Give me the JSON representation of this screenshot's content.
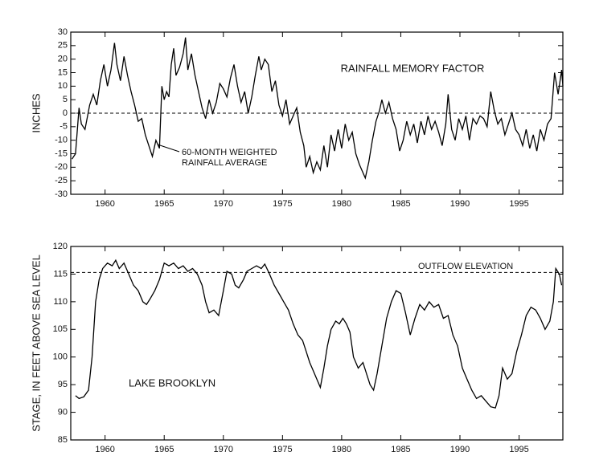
{
  "chart_data": [
    {
      "type": "line",
      "ylabel": "INCHES",
      "title": "RAINFALL MEMORY FACTOR",
      "annotation": [
        "60-MONTH WEIGHTED",
        "RAINFALL AVERAGE"
      ],
      "color": "#000000",
      "reference_line": 0,
      "xlim": [
        1957.1,
        1998.7
      ],
      "xticks": [
        1960,
        1965,
        1970,
        1975,
        1980,
        1985,
        1990,
        1995
      ],
      "ylim": [
        -30,
        30
      ],
      "yticks": [
        -30,
        -25,
        -20,
        -15,
        -10,
        -5,
        0,
        5,
        10,
        15,
        20,
        25,
        30
      ],
      "x": [
        1957.2,
        1957.5,
        1957.8,
        1958.0,
        1958.3,
        1958.7,
        1959.0,
        1959.3,
        1959.6,
        1959.9,
        1960.2,
        1960.5,
        1960.8,
        1961.0,
        1961.3,
        1961.6,
        1961.9,
        1962.2,
        1962.5,
        1962.8,
        1963.1,
        1963.4,
        1963.7,
        1964.0,
        1964.3,
        1964.6,
        1964.8,
        1965.0,
        1965.2,
        1965.4,
        1965.6,
        1965.8,
        1966.0,
        1966.3,
        1966.6,
        1966.8,
        1967.0,
        1967.3,
        1967.6,
        1967.9,
        1968.2,
        1968.5,
        1968.8,
        1969.1,
        1969.4,
        1969.7,
        1970.0,
        1970.3,
        1970.6,
        1970.9,
        1971.2,
        1971.5,
        1971.8,
        1972.1,
        1972.4,
        1972.7,
        1973.0,
        1973.2,
        1973.5,
        1973.8,
        1974.1,
        1974.4,
        1974.7,
        1975.0,
        1975.3,
        1975.6,
        1975.9,
        1976.2,
        1976.5,
        1976.8,
        1977.0,
        1977.3,
        1977.6,
        1977.9,
        1978.2,
        1978.5,
        1978.8,
        1979.1,
        1979.4,
        1979.7,
        1980.0,
        1980.3,
        1980.6,
        1980.9,
        1981.2,
        1981.5,
        1981.8,
        1982.0,
        1982.3,
        1982.6,
        1982.9,
        1983.2,
        1983.4,
        1983.7,
        1984.0,
        1984.3,
        1984.6,
        1984.9,
        1985.2,
        1985.5,
        1985.8,
        1986.1,
        1986.4,
        1986.7,
        1987.0,
        1987.3,
        1987.6,
        1987.9,
        1988.2,
        1988.5,
        1988.8,
        1989.0,
        1989.3,
        1989.6,
        1989.9,
        1990.2,
        1990.5,
        1990.8,
        1991.1,
        1991.4,
        1991.7,
        1992.0,
        1992.3,
        1992.6,
        1992.9,
        1993.2,
        1993.5,
        1993.8,
        1994.1,
        1994.4,
        1994.7,
        1995.0,
        1995.3,
        1995.6,
        1995.9,
        1996.2,
        1996.5,
        1996.8,
        1997.1,
        1997.4,
        1997.7,
        1998.0,
        1998.3,
        1998.6,
        1998.7
      ],
      "values": [
        -17,
        -15,
        2,
        -4,
        -6,
        3,
        7,
        3,
        12,
        18,
        10,
        16,
        26,
        18,
        12,
        21,
        14,
        8,
        3,
        -3,
        -2,
        -8,
        -12,
        -16,
        -10,
        -13,
        10,
        5,
        8,
        6,
        18,
        24,
        14,
        17,
        22,
        28,
        16,
        22,
        14,
        8,
        2,
        -2,
        5,
        0,
        4,
        11,
        9,
        6,
        13,
        18,
        10,
        4,
        8,
        0,
        6,
        14,
        21,
        16,
        20,
        18,
        8,
        12,
        3,
        -1,
        5,
        -4,
        -1,
        2,
        -7,
        -12,
        -20,
        -16,
        -22,
        -18,
        -21,
        -12,
        -20,
        -8,
        -14,
        -6,
        -13,
        -4,
        -10,
        -7,
        -15,
        -19,
        -22,
        -24,
        -18,
        -10,
        -3,
        1,
        5,
        0,
        4,
        -2,
        -6,
        -14,
        -10,
        -3,
        -8,
        -4,
        -11,
        -3,
        -8,
        -1,
        -6,
        -3,
        -7,
        -12,
        -4,
        7,
        -6,
        -10,
        -2,
        -6,
        -1,
        -10,
        -2,
        -4,
        -1,
        -2,
        -5,
        8,
        1,
        -4,
        -2,
        -8,
        -4,
        0,
        -6,
        -8,
        -12,
        -6,
        -13,
        -8,
        -14,
        -6,
        -10,
        -4,
        -2,
        15,
        7,
        16,
        10
      ]
    },
    {
      "type": "line",
      "ylabel": "STAGE, IN FEET ABOVE SEA LEVEL",
      "title": "LAKE BROOKLYN",
      "reference_line": 115.3,
      "reference_label": "OUTFLOW ELEVATION",
      "color": "#000000",
      "xlim": [
        1957.1,
        1998.7
      ],
      "xticks": [
        1960,
        1965,
        1970,
        1975,
        1980,
        1985,
        1990,
        1995
      ],
      "ylim": [
        85,
        120
      ],
      "yticks": [
        85,
        90,
        95,
        100,
        105,
        110,
        115,
        120
      ],
      "x": [
        1957.5,
        1957.8,
        1958.2,
        1958.6,
        1958.9,
        1959.2,
        1959.5,
        1959.8,
        1960.2,
        1960.6,
        1960.9,
        1961.2,
        1961.6,
        1962.0,
        1962.4,
        1962.8,
        1963.2,
        1963.5,
        1963.8,
        1964.2,
        1964.6,
        1965.0,
        1965.4,
        1965.8,
        1966.2,
        1966.6,
        1967.0,
        1967.4,
        1967.8,
        1968.2,
        1968.5,
        1968.8,
        1969.2,
        1969.6,
        1970.0,
        1970.3,
        1970.7,
        1971.0,
        1971.3,
        1971.7,
        1972.0,
        1972.4,
        1972.8,
        1973.2,
        1973.5,
        1973.9,
        1974.3,
        1974.7,
        1975.1,
        1975.5,
        1975.9,
        1976.3,
        1976.7,
        1977.0,
        1977.3,
        1977.6,
        1977.9,
        1978.2,
        1978.5,
        1978.8,
        1979.1,
        1979.5,
        1979.8,
        1980.1,
        1980.4,
        1980.7,
        1981.0,
        1981.4,
        1981.8,
        1982.1,
        1982.4,
        1982.7,
        1983.0,
        1983.4,
        1983.8,
        1984.2,
        1984.6,
        1985.0,
        1985.4,
        1985.8,
        1986.2,
        1986.6,
        1987.0,
        1987.4,
        1987.8,
        1988.2,
        1988.6,
        1989.0,
        1989.4,
        1989.8,
        1990.2,
        1990.6,
        1991.0,
        1991.4,
        1991.8,
        1992.2,
        1992.6,
        1993.0,
        1993.3,
        1993.6,
        1994.0,
        1994.4,
        1994.8,
        1995.2,
        1995.6,
        1996.0,
        1996.4,
        1996.8,
        1997.2,
        1997.6,
        1997.9,
        1998.1,
        1998.4,
        1998.6
      ],
      "values": [
        93,
        92.5,
        92.8,
        94,
        100,
        110,
        114,
        116,
        117,
        116.5,
        117.5,
        116,
        117,
        115,
        113,
        112,
        110,
        109.5,
        110.5,
        112,
        114,
        117,
        116.5,
        117,
        116,
        116.5,
        115.5,
        116,
        115,
        113,
        110,
        108,
        108.5,
        107.5,
        112,
        115.5,
        115,
        113,
        112.5,
        114,
        115.5,
        116,
        116.5,
        116,
        116.8,
        115,
        113,
        111.5,
        110,
        108.5,
        106,
        104,
        103,
        101,
        99,
        97.5,
        96,
        94.5,
        98,
        102,
        105,
        106.5,
        106,
        107,
        106,
        104.5,
        100,
        98,
        99,
        97,
        95,
        94,
        97,
        102,
        107,
        110,
        112,
        111.5,
        108,
        104,
        107,
        109.5,
        108.5,
        110,
        109,
        109.5,
        107,
        107.5,
        104,
        102,
        98,
        96,
        94,
        92.5,
        93,
        92,
        91,
        90.8,
        93,
        98,
        96,
        97,
        101,
        104,
        107.5,
        109,
        108.5,
        107,
        105,
        106.5,
        110,
        116,
        115,
        113
      ]
    }
  ]
}
